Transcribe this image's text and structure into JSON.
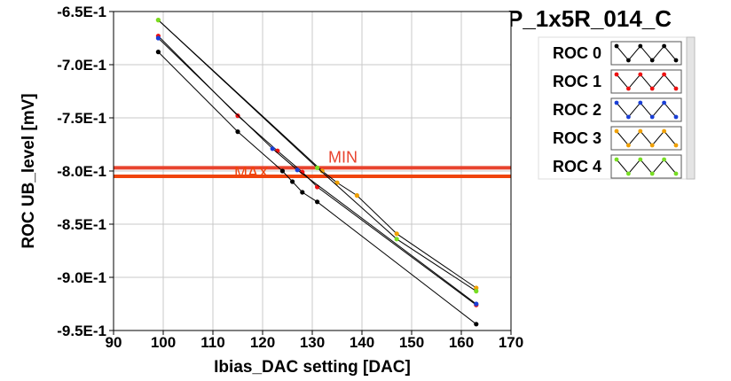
{
  "chart_data": {
    "type": "line",
    "title": "P_1x5R_014_C",
    "xlabel": "Ibias_DAC setting [DAC]",
    "ylabel": "ROC UB_level [mV]",
    "xlim": [
      90,
      170
    ],
    "ylim": [
      -0.95,
      -0.65
    ],
    "xticks": [
      90,
      100,
      110,
      120,
      130,
      140,
      150,
      160,
      170
    ],
    "xtick_labels": [
      "90",
      "100",
      "110",
      "120",
      "130",
      "140",
      "150",
      "160",
      "170"
    ],
    "yticks": [
      -0.65,
      -0.7,
      -0.75,
      -0.8,
      -0.85,
      -0.9,
      -0.95
    ],
    "ytick_labels": [
      "-6.5E-1",
      "-7.0E-1",
      "-7.5E-1",
      "-8.0E-1",
      "-8.5E-1",
      "-9.0E-1",
      "-9.5E-1"
    ],
    "grid": true,
    "legend_position": "top-right, outside plot",
    "reference_lines": [
      {
        "label": "MIN",
        "y": -0.797,
        "color": "#e8432e"
      },
      {
        "label": "MAX",
        "y": -0.805,
        "color": "#f0440c"
      }
    ],
    "series": [
      {
        "name": "ROC 0",
        "color": "#000000",
        "x": [
          99,
          115,
          124,
          126,
          128,
          131,
          163
        ],
        "y": [
          -0.688,
          -0.763,
          -0.8,
          -0.81,
          -0.82,
          -0.829,
          -0.944
        ]
      },
      {
        "name": "ROC 1",
        "color": "#ee1111",
        "x": [
          99,
          115,
          123,
          128,
          131,
          163
        ],
        "y": [
          -0.673,
          -0.748,
          -0.781,
          -0.801,
          -0.815,
          -0.926
        ]
      },
      {
        "name": "ROC 2",
        "color": "#1a3fd6",
        "x": [
          99,
          122,
          127,
          163
        ],
        "y": [
          -0.675,
          -0.779,
          -0.799,
          -0.925
        ]
      },
      {
        "name": "ROC 3",
        "color": "#f0a000",
        "x": [
          99,
          132,
          135,
          139,
          147,
          163
        ],
        "y": [
          -0.658,
          -0.8,
          -0.811,
          -0.823,
          -0.859,
          -0.91
        ]
      },
      {
        "name": "ROC 4",
        "color": "#77dd22",
        "x": [
          99,
          131,
          147,
          163
        ],
        "y": [
          -0.658,
          -0.797,
          -0.864,
          -0.913
        ]
      }
    ]
  },
  "legend": {
    "entries": [
      "ROC 0",
      "ROC 1",
      "ROC 2",
      "ROC 3",
      "ROC 4"
    ]
  },
  "colors": {
    "plot_background": "#ffffff",
    "grid": "#c8c8c8",
    "connector_lines": "#000000"
  }
}
